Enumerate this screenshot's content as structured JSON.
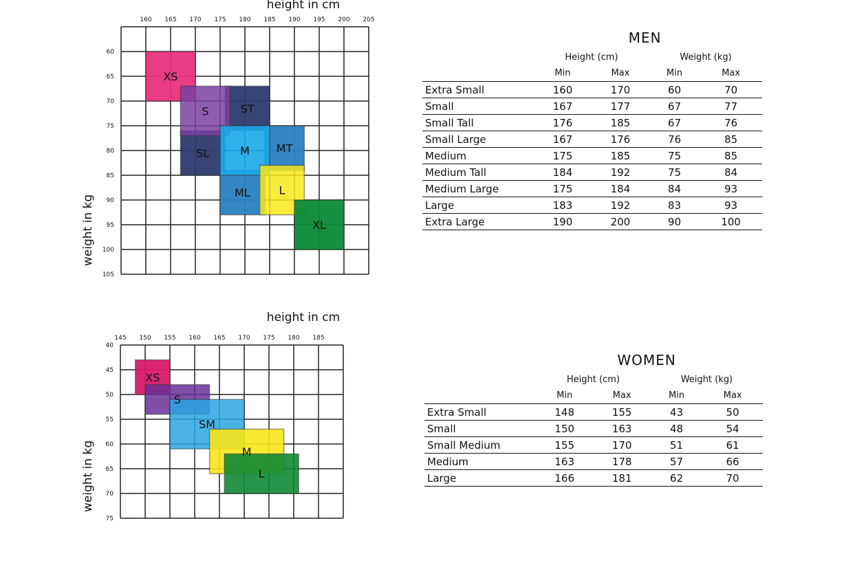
{
  "chart_data": [
    {
      "type": "heatmap",
      "title": "",
      "xlabel": "height in cm",
      "ylabel": "weight in kg",
      "x_ticks": [
        160,
        165,
        170,
        175,
        180,
        185,
        190,
        195,
        200,
        205
      ],
      "y_ticks": [
        60,
        65,
        70,
        75,
        80,
        85,
        90,
        95,
        100,
        105
      ],
      "xlim": [
        155,
        205
      ],
      "ylim": [
        55,
        105
      ],
      "regions": [
        {
          "label": "XS",
          "x": [
            160,
            170
          ],
          "y": [
            60,
            70
          ],
          "color": "#e8327c",
          "opacity": 0.95
        },
        {
          "label": "SL",
          "x": [
            167,
            176
          ],
          "y": [
            76,
            85
          ],
          "color": "#2e3a6e",
          "opacity": 0.95
        },
        {
          "label": "ST",
          "x": [
            176,
            185
          ],
          "y": [
            67,
            76
          ],
          "color": "#2e3a6e",
          "opacity": 0.95
        },
        {
          "label": "S",
          "x": [
            167,
            177
          ],
          "y": [
            67,
            77
          ],
          "color": "#7b3fa0",
          "opacity": 0.85
        },
        {
          "label": "MT",
          "x": [
            184,
            192
          ],
          "y": [
            75,
            84
          ],
          "color": "#2a7fc1",
          "opacity": 0.95
        },
        {
          "label": "ML",
          "x": [
            175,
            184
          ],
          "y": [
            84,
            93
          ],
          "color": "#2a7fc1",
          "opacity": 0.95
        },
        {
          "label": "M",
          "x": [
            175,
            185
          ],
          "y": [
            75,
            85
          ],
          "color": "#1aa8e8",
          "opacity": 0.9
        },
        {
          "label": "L",
          "x": [
            183,
            192
          ],
          "y": [
            83,
            93
          ],
          "color": "#f7e71a",
          "opacity": 0.85
        },
        {
          "label": "XL",
          "x": [
            190,
            200
          ],
          "y": [
            90,
            100
          ],
          "color": "#0a8a35",
          "opacity": 0.95
        }
      ]
    },
    {
      "type": "heatmap",
      "title": "",
      "xlabel": "height in cm",
      "ylabel": "weight in kg",
      "x_ticks": [
        145,
        150,
        155,
        160,
        165,
        170,
        175,
        180,
        185
      ],
      "y_ticks": [
        40,
        45,
        50,
        55,
        60,
        65,
        70,
        75
      ],
      "xlim": [
        145,
        190
      ],
      "ylim": [
        40,
        75
      ],
      "regions": [
        {
          "label": "XS",
          "x": [
            148,
            155
          ],
          "y": [
            43,
            50
          ],
          "color": "#d91a6a",
          "opacity": 0.95
        },
        {
          "label": "S",
          "x": [
            150,
            163
          ],
          "y": [
            48,
            54
          ],
          "color": "#6a2e98",
          "opacity": 0.85
        },
        {
          "label": "SM",
          "x": [
            155,
            170
          ],
          "y": [
            51,
            61
          ],
          "color": "#2aa7e3",
          "opacity": 0.85
        },
        {
          "label": "M",
          "x": [
            163,
            178
          ],
          "y": [
            57,
            66
          ],
          "color": "#f7e71a",
          "opacity": 0.9
        },
        {
          "label": "L",
          "x": [
            166,
            181
          ],
          "y": [
            62,
            70
          ],
          "color": "#0f8a35",
          "opacity": 0.9
        }
      ]
    },
    {
      "type": "table",
      "title": "MEN",
      "group_headers": [
        "Height (cm)",
        "Weight (kg)"
      ],
      "sub_headers": [
        "Min",
        "Max",
        "Min",
        "Max"
      ],
      "rows": [
        {
          "name": "Extra Small",
          "values": [
            "160",
            "170",
            "60",
            "70"
          ]
        },
        {
          "name": "Small",
          "values": [
            "167",
            "177",
            "67",
            "77"
          ]
        },
        {
          "name": "Small Tall",
          "values": [
            "176",
            "185",
            "67",
            "76"
          ]
        },
        {
          "name": "Small Large",
          "values": [
            "167",
            "176",
            "76",
            "85"
          ]
        },
        {
          "name": "Medium",
          "values": [
            "175",
            "185",
            "75",
            "85"
          ]
        },
        {
          "name": "Medium Tall",
          "values": [
            "184",
            "192",
            "75",
            "84"
          ]
        },
        {
          "name": "Medium Large",
          "values": [
            "175",
            "184",
            "84",
            "93"
          ]
        },
        {
          "name": "Large",
          "values": [
            "183",
            "192",
            "83",
            "93"
          ]
        },
        {
          "name": "Extra Large",
          "values": [
            "190",
            "200",
            "90",
            "100"
          ]
        }
      ]
    },
    {
      "type": "table",
      "title": "WOMEN",
      "group_headers": [
        "Height (cm)",
        "Weight (kg)"
      ],
      "sub_headers": [
        "Min",
        "Max",
        "Min",
        "Max"
      ],
      "rows": [
        {
          "name": "Extra Small",
          "values": [
            "148",
            "155",
            "43",
            "50"
          ]
        },
        {
          "name": "Small",
          "values": [
            "150",
            "163",
            "48",
            "54"
          ]
        },
        {
          "name": "Small Medium",
          "values": [
            "155",
            "170",
            "51",
            "61"
          ]
        },
        {
          "name": "Medium",
          "values": [
            "163",
            "178",
            "57",
            "66"
          ]
        },
        {
          "name": "Large",
          "values": [
            "166",
            "181",
            "62",
            "70"
          ]
        }
      ]
    }
  ]
}
